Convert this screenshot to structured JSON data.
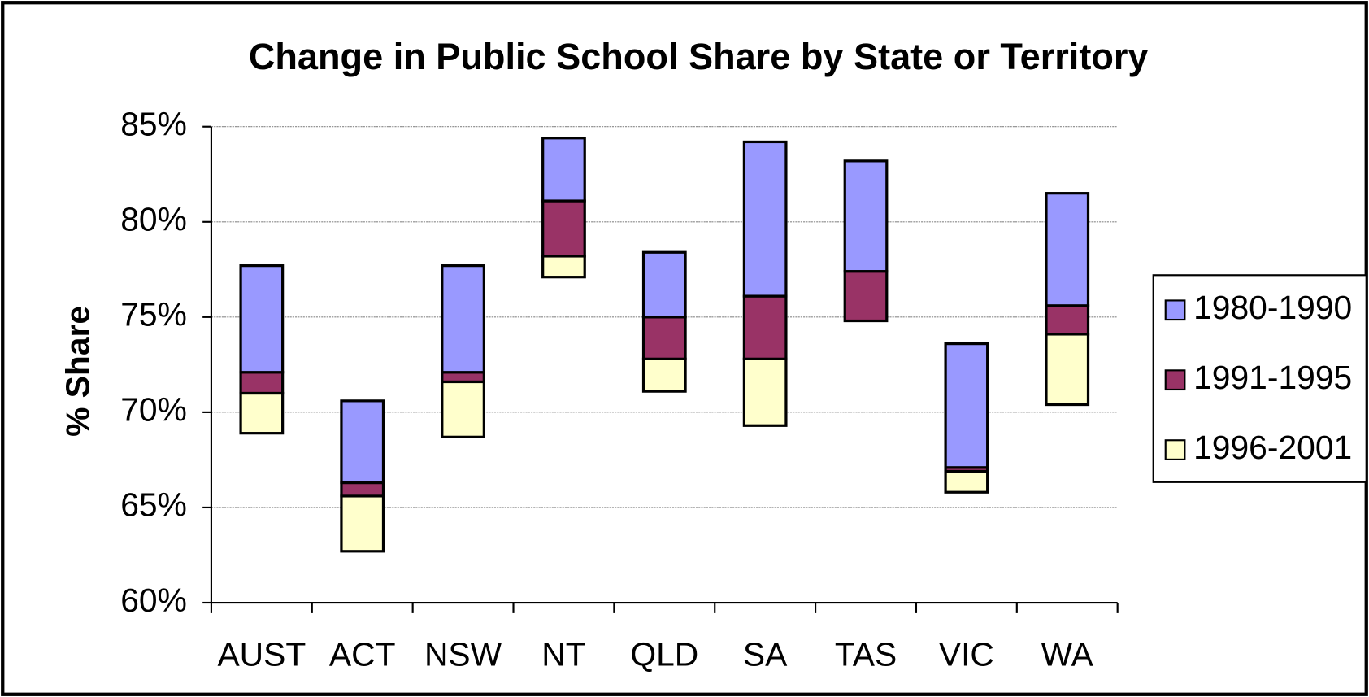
{
  "chart_data": {
    "type": "floating_bar",
    "title": "Change in Public School Share by State or Territory",
    "y_label": "% Share",
    "categories": [
      "AUST",
      "ACT",
      "NSW",
      "NT",
      "QLD",
      "SA",
      "TAS",
      "VIC",
      "WA"
    ],
    "series": [
      {
        "name": "1996-2001",
        "color": "#ffffcc",
        "values": [
          [
            68.9,
            71.0
          ],
          [
            62.7,
            65.6
          ],
          [
            68.7,
            71.6
          ],
          [
            77.1,
            78.2
          ],
          [
            71.1,
            72.8
          ],
          [
            69.3,
            72.8
          ],
          null,
          [
            65.8,
            66.9
          ],
          [
            70.4,
            74.1
          ]
        ]
      },
      {
        "name": "1991-1995",
        "color": "#993366",
        "values": [
          [
            71.0,
            72.1
          ],
          [
            65.6,
            66.3
          ],
          [
            71.6,
            72.1
          ],
          [
            78.2,
            81.1
          ],
          [
            72.8,
            75.0
          ],
          [
            72.8,
            76.1
          ],
          [
            74.8,
            77.4
          ],
          [
            66.9,
            67.1
          ],
          [
            74.1,
            75.6
          ]
        ]
      },
      {
        "name": "1980-1990",
        "color": "#9999ff",
        "values": [
          [
            72.1,
            77.7
          ],
          [
            66.3,
            70.6
          ],
          [
            72.1,
            77.7
          ],
          [
            81.1,
            84.4
          ],
          [
            75.0,
            78.4
          ],
          [
            76.1,
            84.2
          ],
          [
            77.4,
            83.2
          ],
          [
            67.1,
            73.6
          ],
          [
            75.6,
            81.5
          ]
        ]
      }
    ],
    "ylim": [
      60,
      85
    ],
    "yticks": [
      {
        "value": 60,
        "label": "60%"
      },
      {
        "value": 65,
        "label": "65%"
      },
      {
        "value": 70,
        "label": "70%"
      },
      {
        "value": 75,
        "label": "75%"
      },
      {
        "value": 80,
        "label": "80%"
      },
      {
        "value": 85,
        "label": "85%"
      }
    ],
    "grid": true,
    "legend": "right"
  }
}
